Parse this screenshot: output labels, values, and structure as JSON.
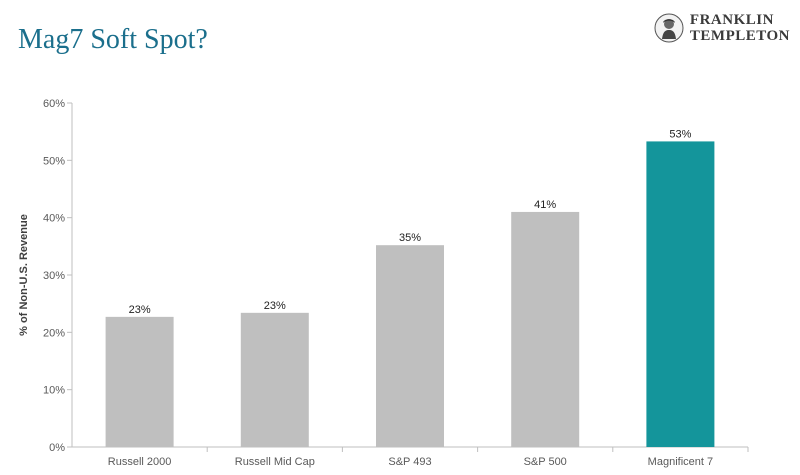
{
  "header": {
    "title": "Mag7 Soft Spot?",
    "brand_line1": "FRANKLIN",
    "brand_line2": "TEMPLETON"
  },
  "chart_data": {
    "type": "bar",
    "title": "Mag7 Soft Spot?",
    "xlabel": "",
    "ylabel": "% of Non-U.S. Revenue",
    "categories": [
      "Russell 2000",
      "Russell Mid Cap",
      "S&P 493",
      "S&P 500",
      "Magnificent 7"
    ],
    "values": [
      22.7,
      23.4,
      35.2,
      41.0,
      53.3
    ],
    "value_labels": [
      "23%",
      "23%",
      "35%",
      "41%",
      "53%"
    ],
    "ylim": [
      0,
      60
    ],
    "yticks": [
      0,
      10,
      20,
      30,
      40,
      50,
      60
    ],
    "ytick_labels": [
      "0%",
      "10%",
      "20%",
      "30%",
      "40%",
      "50%",
      "60%"
    ],
    "grid": false,
    "legend": "none",
    "colors": [
      "#bfbfbf",
      "#bfbfbf",
      "#bfbfbf",
      "#bfbfbf",
      "#14959b"
    ],
    "axis_color": "#bfbfbf"
  }
}
